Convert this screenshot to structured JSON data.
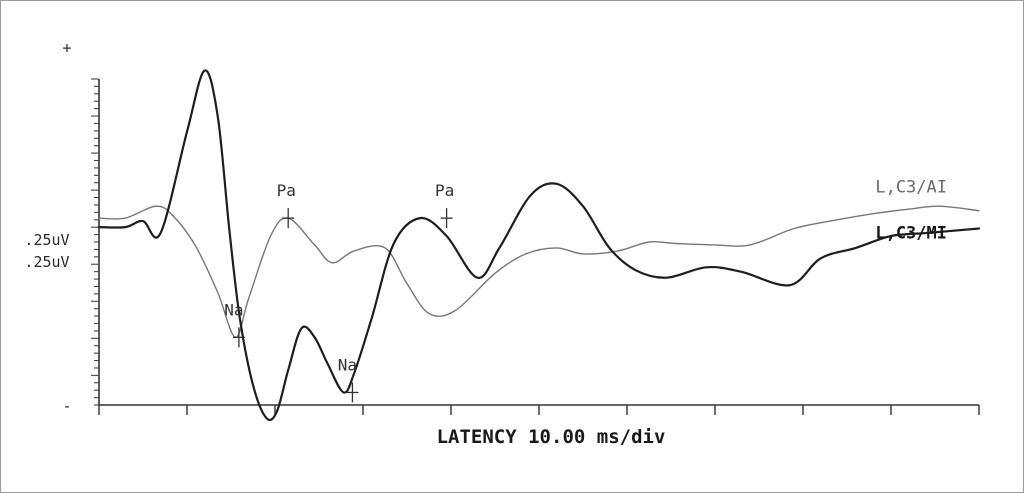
{
  "chart_data": {
    "type": "line",
    "title": "",
    "xlabel": "LATENCY  10.00 ms/div",
    "ylabel": "",
    "xlim": [
      0,
      100
    ],
    "ylim": [
      -1,
      1
    ],
    "grid": false,
    "polarity": {
      "positive": "+",
      "negative": "-"
    },
    "scale_labels": [
      ".25uV",
      ".25uV"
    ],
    "series": [
      {
        "name": "L,C3/AI",
        "color": "#777777",
        "x": [
          0,
          3,
          6.5,
          8.5,
          11,
          13.5,
          15.5,
          17,
          19.5,
          21.5,
          24.5,
          26.5,
          29,
          32.5,
          35,
          37.5,
          40.5,
          45,
          48.5,
          52,
          55,
          59,
          62.5,
          65.5,
          70,
          74,
          79,
          84,
          88,
          92,
          95.5,
          100
        ],
        "y": [
          0.12,
          0.12,
          0.2,
          0.13,
          -0.07,
          -0.38,
          -0.68,
          -0.42,
          0.0,
          0.12,
          -0.06,
          -0.18,
          -0.1,
          -0.08,
          -0.32,
          -0.52,
          -0.5,
          -0.25,
          -0.12,
          -0.08,
          -0.12,
          -0.1,
          -0.04,
          -0.05,
          -0.06,
          -0.06,
          0.05,
          0.11,
          0.15,
          0.18,
          0.2,
          0.17
        ]
      },
      {
        "name": "L,C3/MI",
        "color": "#1e1e1e",
        "x": [
          0,
          3,
          5,
          7,
          10,
          12,
          13.5,
          14.8,
          16,
          17.5,
          19,
          20.2,
          21.5,
          23,
          24.5,
          26,
          27.8,
          29,
          31,
          33.5,
          36.5,
          39.5,
          43,
          45.5,
          49,
          52,
          55,
          58,
          61,
          64.5,
          69,
          73,
          78.5,
          82,
          86,
          90,
          94,
          100
        ],
        "y": [
          0.06,
          0.06,
          0.1,
          0.02,
          0.7,
          1.11,
          0.8,
          0.05,
          -0.55,
          -1.0,
          -1.22,
          -1.18,
          -0.9,
          -0.62,
          -0.68,
          -0.86,
          -1.05,
          -0.92,
          -0.55,
          -0.05,
          0.12,
          0.0,
          -0.28,
          -0.08,
          0.27,
          0.35,
          0.2,
          -0.08,
          -0.23,
          -0.28,
          -0.21,
          -0.24,
          -0.33,
          -0.15,
          -0.08,
          0.0,
          0.02,
          0.05
        ]
      }
    ],
    "annotations": [
      {
        "text": "Pa",
        "x": 21.5,
        "y": 0.12,
        "series": "L,C3/AI"
      },
      {
        "text": "Na",
        "x": 15.9,
        "y": -0.68,
        "series": "L,C3/AI"
      },
      {
        "text": "Pa",
        "x": 39.5,
        "y": 0.12,
        "series": "L,C3/MI"
      },
      {
        "text": "Na",
        "x": 28.8,
        "y": -1.05,
        "series": "L,C3/MI"
      }
    ]
  }
}
